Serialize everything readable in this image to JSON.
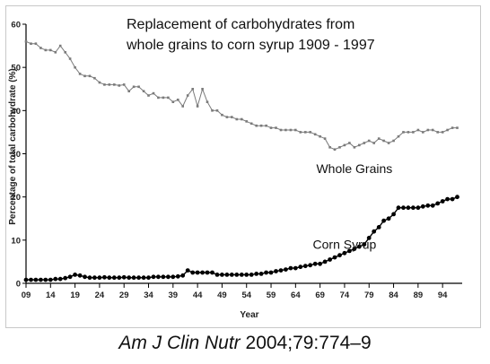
{
  "chart_data": {
    "type": "line",
    "title_lines": [
      "Replacement of carbohydrates from",
      "whole grains to corn syrup 1909 - 1997"
    ],
    "xlabel": "Year",
    "ylabel": "Percentage of total carbohydrate (%)",
    "xlim": [
      1909,
      1998
    ],
    "ylim": [
      0,
      60
    ],
    "x_ticks": [
      1909,
      1914,
      1919,
      1924,
      1929,
      1934,
      1939,
      1944,
      1949,
      1954,
      1959,
      1964,
      1969,
      1974,
      1979,
      1984,
      1989,
      1994
    ],
    "x_tick_labels": [
      "09",
      "14",
      "19",
      "24",
      "29",
      "34",
      "39",
      "44",
      "49",
      "54",
      "59",
      "64",
      "69",
      "74",
      "79",
      "84",
      "89",
      "94"
    ],
    "y_ticks": [
      0,
      10,
      20,
      30,
      40,
      50,
      60
    ],
    "y_tick_labels": [
      "0",
      "10",
      "20",
      "30",
      "40",
      "50",
      "60"
    ],
    "grid": false,
    "series": [
      {
        "name": "Whole Grains",
        "marker": "small-square",
        "color": "#7a7a7a",
        "x": [
          1909,
          1910,
          1911,
          1912,
          1913,
          1914,
          1915,
          1916,
          1917,
          1918,
          1919,
          1920,
          1921,
          1922,
          1923,
          1924,
          1925,
          1926,
          1927,
          1928,
          1929,
          1930,
          1931,
          1932,
          1933,
          1934,
          1935,
          1936,
          1937,
          1938,
          1939,
          1940,
          1941,
          1942,
          1943,
          1944,
          1945,
          1946,
          1947,
          1948,
          1949,
          1950,
          1951,
          1952,
          1953,
          1954,
          1955,
          1956,
          1957,
          1958,
          1959,
          1960,
          1961,
          1962,
          1963,
          1964,
          1965,
          1966,
          1967,
          1968,
          1969,
          1970,
          1971,
          1972,
          1973,
          1974,
          1975,
          1976,
          1977,
          1978,
          1979,
          1980,
          1981,
          1982,
          1983,
          1984,
          1985,
          1986,
          1987,
          1988,
          1989,
          1990,
          1991,
          1992,
          1993,
          1994,
          1995,
          1996,
          1997
        ],
        "y": [
          56,
          55.5,
          55.5,
          54.5,
          54,
          54,
          53.5,
          55,
          53.5,
          52,
          50,
          48.5,
          48,
          48,
          47.5,
          46.5,
          46,
          46,
          46,
          45.8,
          46,
          44.5,
          45.5,
          45.5,
          44.5,
          43.5,
          44,
          43,
          43,
          43,
          42,
          42.5,
          41,
          43.5,
          45,
          41,
          45,
          42,
          40,
          40,
          39,
          38.5,
          38.5,
          38,
          38,
          37.5,
          37,
          36.5,
          36.5,
          36.5,
          36,
          36,
          35.5,
          35.5,
          35.5,
          35.5,
          35,
          35,
          35,
          34.5,
          34,
          33.5,
          31.5,
          31,
          31.5,
          32,
          32.5,
          31.5,
          32,
          32.5,
          33,
          32.5,
          33.5,
          33,
          32.5,
          33,
          34,
          35,
          35,
          35,
          35.5,
          35,
          35.5,
          35.5,
          35,
          35,
          35.5,
          36,
          36
        ]
      },
      {
        "name": "Corn Syrup",
        "marker": "filled-circle",
        "color": "#000000",
        "x": [
          1909,
          1910,
          1911,
          1912,
          1913,
          1914,
          1915,
          1916,
          1917,
          1918,
          1919,
          1920,
          1921,
          1922,
          1923,
          1924,
          1925,
          1926,
          1927,
          1928,
          1929,
          1930,
          1931,
          1932,
          1933,
          1934,
          1935,
          1936,
          1937,
          1938,
          1939,
          1940,
          1941,
          1942,
          1943,
          1944,
          1945,
          1946,
          1947,
          1948,
          1949,
          1950,
          1951,
          1952,
          1953,
          1954,
          1955,
          1956,
          1957,
          1958,
          1959,
          1960,
          1961,
          1962,
          1963,
          1964,
          1965,
          1966,
          1967,
          1968,
          1969,
          1970,
          1971,
          1972,
          1973,
          1974,
          1975,
          1976,
          1977,
          1978,
          1979,
          1980,
          1981,
          1982,
          1983,
          1984,
          1985,
          1986,
          1987,
          1988,
          1989,
          1990,
          1991,
          1992,
          1993,
          1994,
          1995,
          1996,
          1997
        ],
        "y": [
          0.8,
          0.8,
          0.8,
          0.8,
          0.8,
          0.8,
          1,
          1,
          1.2,
          1.5,
          2,
          1.8,
          1.5,
          1.3,
          1.3,
          1.3,
          1.4,
          1.3,
          1.3,
          1.3,
          1.4,
          1.3,
          1.3,
          1.3,
          1.3,
          1.3,
          1.5,
          1.5,
          1.5,
          1.5,
          1.5,
          1.6,
          1.8,
          3,
          2.5,
          2.5,
          2.5,
          2.5,
          2.5,
          2,
          2,
          2,
          2,
          2,
          2,
          2,
          2,
          2.2,
          2.2,
          2.5,
          2.5,
          2.8,
          3,
          3.2,
          3.5,
          3.5,
          3.8,
          4,
          4.2,
          4.5,
          4.5,
          5,
          5.5,
          6,
          6.5,
          7,
          7.5,
          8,
          8.5,
          9,
          10.5,
          12,
          13,
          14.5,
          15,
          16,
          17.5,
          17.5,
          17.5,
          17.5,
          17.5,
          17.8,
          18,
          18,
          18.5,
          19,
          19.5,
          19.5,
          20
        ]
      }
    ],
    "annotations": [
      {
        "text": "Whole Grains",
        "x": 1976,
        "y": 25.5
      },
      {
        "text": "Corn Syrup",
        "x": 1974,
        "y": 8
      }
    ]
  },
  "citation": {
    "journal": "Am J Clin Nutr",
    "rest": " 2004;79:774–9"
  }
}
